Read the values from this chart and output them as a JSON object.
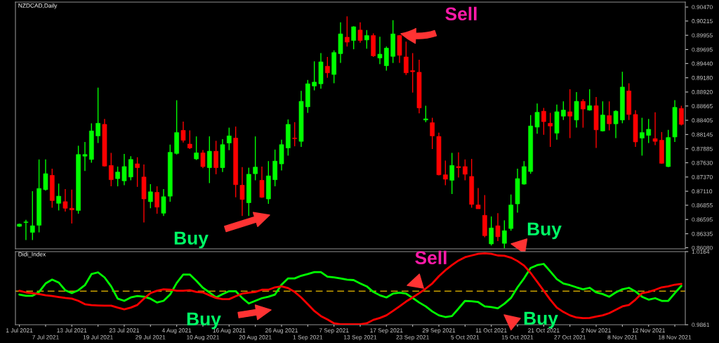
{
  "chart_data": [
    {
      "type": "candlestick",
      "title": "NZDCAD,Daily",
      "ohlc": [
        [
          0.8647,
          0.8652,
          0.8646,
          0.8651
        ],
        [
          0.8654,
          0.8659,
          0.8622,
          0.8655
        ],
        [
          0.8636,
          0.8711,
          0.8622,
          0.8648
        ],
        [
          0.8649,
          0.8769,
          0.8636,
          0.8716
        ],
        [
          0.8714,
          0.8769,
          0.8712,
          0.8743
        ],
        [
          0.874,
          0.8752,
          0.8681,
          0.8694
        ],
        [
          0.8689,
          0.8725,
          0.8676,
          0.8702
        ],
        [
          0.8692,
          0.8715,
          0.8674,
          0.868
        ],
        [
          0.868,
          0.8714,
          0.8652,
          0.8677
        ],
        [
          0.8676,
          0.8794,
          0.867,
          0.8778
        ],
        [
          0.8775,
          0.8801,
          0.8748,
          0.8778
        ],
        [
          0.8769,
          0.8835,
          0.8763,
          0.8821
        ],
        [
          0.8812,
          0.89,
          0.8799,
          0.8835
        ],
        [
          0.8833,
          0.8843,
          0.8756,
          0.8757
        ],
        [
          0.8758,
          0.8781,
          0.872,
          0.8732
        ],
        [
          0.8734,
          0.8756,
          0.872,
          0.8746
        ],
        [
          0.873,
          0.8779,
          0.8722,
          0.8756
        ],
        [
          0.8737,
          0.8775,
          0.8731,
          0.8769
        ],
        [
          0.8761,
          0.8773,
          0.8719,
          0.8754
        ],
        [
          0.8737,
          0.876,
          0.8654,
          0.8697
        ],
        [
          0.8692,
          0.8724,
          0.868,
          0.871
        ],
        [
          0.8709,
          0.872,
          0.867,
          0.8682
        ],
        [
          0.8671,
          0.8715,
          0.8666,
          0.8701
        ],
        [
          0.8702,
          0.8796,
          0.8692,
          0.8782
        ],
        [
          0.878,
          0.8877,
          0.8778,
          0.8818
        ],
        [
          0.8822,
          0.8838,
          0.88,
          0.8804
        ],
        [
          0.8797,
          0.8822,
          0.8788,
          0.879
        ],
        [
          0.877,
          0.8811,
          0.8768,
          0.8781
        ],
        [
          0.8781,
          0.8786,
          0.8753,
          0.8756
        ],
        [
          0.8754,
          0.8811,
          0.8726,
          0.8784
        ],
        [
          0.8784,
          0.8803,
          0.8742,
          0.8754
        ],
        [
          0.8754,
          0.8806,
          0.8746,
          0.8796
        ],
        [
          0.8799,
          0.8827,
          0.8786,
          0.8812
        ],
        [
          0.8808,
          0.8829,
          0.87,
          0.8723
        ],
        [
          0.8722,
          0.8755,
          0.8666,
          0.8696
        ],
        [
          0.869,
          0.8754,
          0.8666,
          0.8742
        ],
        [
          0.8743,
          0.8811,
          0.8731,
          0.8755
        ],
        [
          0.8731,
          0.8756,
          0.8699,
          0.87
        ],
        [
          0.8697,
          0.8766,
          0.8688,
          0.8739
        ],
        [
          0.8732,
          0.8787,
          0.872,
          0.8766
        ],
        [
          0.8761,
          0.8805,
          0.8749,
          0.8796
        ],
        [
          0.879,
          0.8842,
          0.8776,
          0.8833
        ],
        [
          0.8808,
          0.8837,
          0.8793,
          0.8807
        ],
        [
          0.8802,
          0.8894,
          0.8792,
          0.8875
        ],
        [
          0.8865,
          0.8914,
          0.8854,
          0.8907
        ],
        [
          0.8903,
          0.8948,
          0.8895,
          0.891
        ],
        [
          0.8907,
          0.8963,
          0.8898,
          0.8947
        ],
        [
          0.8939,
          0.8956,
          0.8918,
          0.8927
        ],
        [
          0.8924,
          0.8968,
          0.8908,
          0.8964
        ],
        [
          0.8962,
          0.9019,
          0.8945,
          0.8998
        ],
        [
          0.8992,
          0.903,
          0.8975,
          0.8983
        ],
        [
          0.8986,
          0.9012,
          0.897,
          0.9011
        ],
        [
          0.9005,
          0.9019,
          0.8982,
          0.8986
        ],
        [
          0.8987,
          0.9005,
          0.8971,
          0.8995
        ],
        [
          0.8995,
          0.8999,
          0.8956,
          0.8958
        ],
        [
          0.8954,
          0.8993,
          0.8943,
          0.8961
        ],
        [
          0.894,
          0.8975,
          0.8931,
          0.8972
        ],
        [
          0.8957,
          0.9023,
          0.8945,
          0.8998
        ],
        [
          0.8995,
          0.8996,
          0.8945,
          0.8959
        ],
        [
          0.8956,
          0.8984,
          0.8923,
          0.8927
        ],
        [
          0.8931,
          0.8963,
          0.8891,
          0.8929
        ],
        [
          0.8928,
          0.8951,
          0.8853,
          0.8863
        ],
        [
          0.8841,
          0.8867,
          0.8837,
          0.8843
        ],
        [
          0.8836,
          0.8845,
          0.8788,
          0.8812
        ],
        [
          0.8811,
          0.8818,
          0.874,
          0.8741
        ],
        [
          0.8741,
          0.8767,
          0.8722,
          0.8733
        ],
        [
          0.8731,
          0.8781,
          0.8706,
          0.8758
        ],
        [
          0.8756,
          0.8782,
          0.8736,
          0.8754
        ],
        [
          0.8756,
          0.8769,
          0.8731,
          0.8742
        ],
        [
          0.8738,
          0.877,
          0.8681,
          0.8687
        ],
        [
          0.8686,
          0.8717,
          0.8679,
          0.8679
        ],
        [
          0.8667,
          0.8704,
          0.8627,
          0.863
        ],
        [
          0.8615,
          0.8665,
          0.8612,
          0.8644
        ],
        [
          0.8648,
          0.8671,
          0.862,
          0.8628
        ],
        [
          0.8616,
          0.8658,
          0.8607,
          0.8639
        ],
        [
          0.8643,
          0.8705,
          0.8639,
          0.8686
        ],
        [
          0.8688,
          0.8752,
          0.8672,
          0.8734
        ],
        [
          0.8724,
          0.8766,
          0.8723,
          0.8756
        ],
        [
          0.8747,
          0.885,
          0.8743,
          0.883
        ],
        [
          0.8828,
          0.8871,
          0.8816,
          0.8855
        ],
        [
          0.8857,
          0.8863,
          0.8814,
          0.8838
        ],
        [
          0.8835,
          0.8854,
          0.8792,
          0.883
        ],
        [
          0.8817,
          0.8869,
          0.8805,
          0.8856
        ],
        [
          0.8848,
          0.8875,
          0.8841,
          0.8859
        ],
        [
          0.8856,
          0.8897,
          0.8808,
          0.8848
        ],
        [
          0.8841,
          0.8892,
          0.8827,
          0.8875
        ],
        [
          0.8875,
          0.8879,
          0.8827,
          0.8861
        ],
        [
          0.8859,
          0.8897,
          0.8858,
          0.8867
        ],
        [
          0.8867,
          0.8883,
          0.879,
          0.8823
        ],
        [
          0.8821,
          0.8875,
          0.882,
          0.885
        ],
        [
          0.8849,
          0.8875,
          0.8822,
          0.8834
        ],
        [
          0.8834,
          0.8859,
          0.8808,
          0.8857
        ],
        [
          0.8841,
          0.8929,
          0.8835,
          0.8901
        ],
        [
          0.8894,
          0.8908,
          0.8841,
          0.8851
        ],
        [
          0.8851,
          0.8859,
          0.8792,
          0.8801
        ],
        [
          0.8808,
          0.8845,
          0.8776,
          0.8818
        ],
        [
          0.8813,
          0.8843,
          0.8799,
          0.8824
        ],
        [
          0.8807,
          0.8855,
          0.8795,
          0.8802
        ],
        [
          0.8804,
          0.8819,
          0.8761,
          0.8762
        ],
        [
          0.8756,
          0.8823,
          0.8755,
          0.8809
        ],
        [
          0.881,
          0.8877,
          0.8801,
          0.8864
        ],
        [
          0.8862,
          0.8867,
          0.8831,
          0.8833
        ]
      ],
      "colors": [
        "#00ff00",
        "#00ff00",
        "#00ff00",
        "#00ff00",
        "#00ff00",
        "#ff0000",
        "#00ff00",
        "#ff0000",
        "#ff0000",
        "#00ff00",
        "#00ff00",
        "#00ff00",
        "#00ff00",
        "#ff0000",
        "#ff0000",
        "#00ff00",
        "#00ff00",
        "#00ff00",
        "#ff0000",
        "#ff0000",
        "#00ff00",
        "#ff0000",
        "#00ff00",
        "#00ff00",
        "#00ff00",
        "#ff0000",
        "#ff0000",
        "#00ff00",
        "#ff0000",
        "#00ff00",
        "#ff0000",
        "#00ff00",
        "#00ff00",
        "#ff0000",
        "#ff0000",
        "#00ff00",
        "#00ff00",
        "#ff0000",
        "#00ff00",
        "#00ff00",
        "#00ff00",
        "#00ff00",
        "#ff0000",
        "#00ff00",
        "#00ff00",
        "#00ff00",
        "#00ff00",
        "#ff0000",
        "#00ff00",
        "#00ff00",
        "#ff0000",
        "#00ff00",
        "#ff0000",
        "#00ff00",
        "#ff0000",
        "#00ff00",
        "#00ff00",
        "#00ff00",
        "#ff0000",
        "#ff0000",
        "#ff0000",
        "#ff0000",
        "#00ff00",
        "#ff0000",
        "#ff0000",
        "#ff0000",
        "#00ff00",
        "#ff0000",
        "#ff0000",
        "#ff0000",
        "#ff0000",
        "#ff0000",
        "#00ff00",
        "#ff0000",
        "#00ff00",
        "#00ff00",
        "#00ff00",
        "#00ff00",
        "#00ff00",
        "#00ff00",
        "#ff0000",
        "#ff0000",
        "#00ff00",
        "#00ff00",
        "#ff0000",
        "#00ff00",
        "#ff0000",
        "#00ff00",
        "#ff0000",
        "#00ff00",
        "#ff0000",
        "#00ff00",
        "#00ff00",
        "#ff0000",
        "#ff0000",
        "#00ff00",
        "#00ff00",
        "#ff0000",
        "#ff0000",
        "#00ff00",
        "#00ff00",
        "#ff0000"
      ],
      "ylim": [
        0.8606,
        0.9056
      ],
      "yticks": [
        {
          "value": 0.9047,
          "label": "0.90470"
        },
        {
          "value": 0.90215,
          "label": "0.90215"
        },
        {
          "value": 0.89955,
          "label": "0.89955"
        },
        {
          "value": 0.89695,
          "label": "0.89695"
        },
        {
          "value": 0.8944,
          "label": "0.89440"
        },
        {
          "value": 0.8918,
          "label": "0.89180"
        },
        {
          "value": 0.8892,
          "label": "0.88920"
        },
        {
          "value": 0.88665,
          "label": "0.88665"
        },
        {
          "value": 0.88405,
          "label": "0.88405"
        },
        {
          "value": 0.88145,
          "label": "0.88145"
        },
        {
          "value": 0.87885,
          "label": "0.87885"
        },
        {
          "value": 0.8763,
          "label": "0.87630"
        },
        {
          "value": 0.8737,
          "label": "0.87370"
        },
        {
          "value": 0.8711,
          "label": "0.87110"
        },
        {
          "value": 0.86855,
          "label": "0.86855"
        },
        {
          "value": 0.86595,
          "label": "0.86595"
        },
        {
          "value": 0.86335,
          "label": "0.86335"
        },
        {
          "value": 0.8608,
          "label": "0.86080"
        }
      ],
      "tick_labels": "y",
      "annotations": [
        "Sell",
        "Buy",
        "Buy"
      ]
    },
    {
      "type": "line",
      "title": "Didi_Index",
      "categories": [
        "1 Jul 2021",
        null,
        null,
        null,
        "7 Jul 2021",
        null,
        null,
        null,
        "13 Jul 2021",
        null,
        null,
        null,
        "19 Jul 2021",
        null,
        null,
        null,
        "23 Jul 2021",
        null,
        null,
        null,
        "29 Jul 2021",
        null,
        null,
        null,
        "4 Aug 2021",
        null,
        null,
        null,
        "10 Aug 2021",
        null,
        null,
        null,
        "16 Aug 2021",
        null,
        null,
        null,
        "20 Aug 2021",
        null,
        null,
        null,
        "26 Aug 2021",
        null,
        null,
        null,
        "1 Sep 2021",
        null,
        null,
        null,
        "7 Sep 2021",
        null,
        null,
        null,
        "13 Sep 2021",
        null,
        null,
        null,
        "17 Sep 2021",
        null,
        null,
        null,
        "23 Sep 2021",
        null,
        null,
        null,
        "29 Sep 2021",
        null,
        null,
        null,
        "5 Oct 2021",
        null,
        null,
        null,
        "11 Oct 2021",
        null,
        null,
        null,
        "15 Oct 2021",
        null,
        null,
        null,
        "21 Oct 2021",
        null,
        null,
        null,
        "27 Oct 2021",
        null,
        null,
        null,
        "2 Nov 2021",
        null,
        null,
        null,
        "8 Nov 2021",
        null,
        null,
        null,
        "12 Nov 2021",
        null,
        null,
        null,
        "18 Nov 2021",
        null
      ],
      "series": [
        {
          "color": "#00ff00",
          "values": [
            0.9986,
            0.9981,
            0.9981,
            0.9997,
            1.0032,
            1.0048,
            1.0036,
            1.0004,
            0.9992,
            1.0004,
            1.0025,
            1.0071,
            1.0078,
            1.0057,
            1.002,
            0.9969,
            0.996,
            0.9974,
            0.998,
            0.9977,
            0.9969,
            0.9953,
            0.996,
            0.9986,
            1.0034,
            1.0069,
            1.0069,
            1.0043,
            1.0014,
            0.9995,
            0.9974,
            0.9988,
            1.0,
            1.0,
            0.9972,
            0.9949,
            0.996,
            0.9971,
            0.9977,
            0.9986,
            1.0027,
            1.0053,
            1.0053,
            1.0064,
            1.0071,
            1.0079,
            1.0079,
            1.006,
            1.0057,
            1.0053,
            1.0048,
            1.0046,
            1.0032,
            1.002,
            0.9997,
            0.9983,
            0.9974,
            0.999,
            0.9994,
            0.999,
            0.9972,
            0.9953,
            0.9937,
            0.9916,
            0.99,
            0.9893,
            0.9897,
            0.9928,
            0.996,
            0.9958,
            0.9955,
            0.9937,
            0.9934,
            0.9929,
            0.9948,
            0.9972,
            1.0016,
            1.0053,
            1.0096,
            1.0108,
            1.0113,
            1.0082,
            1.005,
            1.0032,
            1.0025,
            1.0016,
            1.0008,
            1.0014,
            0.9995,
            0.9988,
            0.9977,
            0.9995,
            1.0008,
            1.0014,
            0.9999,
            0.9977,
            0.9965,
            0.9971,
            0.996,
            0.996,
            0.9992,
            1.0022
          ]
        },
        {
          "color": "#ff0000",
          "values": [
            1.0002,
            0.9995,
            0.9992,
            0.9988,
            0.9983,
            0.998,
            0.9976,
            0.9972,
            0.9969,
            0.996,
            0.9946,
            0.9942,
            0.9941,
            0.994,
            0.994,
            0.9932,
            0.9925,
            0.9932,
            0.9943,
            0.9969,
            0.9992,
            1.0002,
            1.0008,
            1.0006,
            1.0002,
            1.0002,
            1.0004,
            0.9997,
            0.9995,
            0.9983,
            0.9972,
            0.9967,
            0.9967,
            0.9979,
            0.999,
            0.9994,
            0.9997,
            1.0006,
            1.0006,
            1.0016,
            1.002,
            1.0013,
            0.9997,
            0.9974,
            0.9946,
            0.9918,
            0.9897,
            0.9883,
            0.9867,
            0.9863,
            0.9863,
            0.9863,
            0.9863,
            0.9867,
            0.9881,
            0.9889,
            0.99,
            0.9918,
            0.9937,
            0.9957,
            0.9974,
            0.9992,
            1.0011,
            1.0032,
            1.0062,
            1.0087,
            1.0108,
            1.0127,
            1.0141,
            1.0148,
            1.0155,
            1.0157,
            1.0155,
            1.0148,
            1.0147,
            1.0139,
            1.0125,
            1.0106,
            1.0076,
            1.0039,
            1.0002,
            0.9965,
            0.9932,
            0.9914,
            0.99,
            0.9891,
            0.9888,
            0.9889,
            0.9895,
            0.99,
            0.9909,
            0.9923,
            0.9937,
            0.9943,
            0.9965,
            0.9992,
            0.9997,
            1.0006,
            1.0016,
            1.002,
            1.0027,
            1.003
          ]
        }
      ],
      "ref_lines": [
        {
          "axis": "y",
          "value": 1.0,
          "color": "#c8a000",
          "line_style": "dashed"
        }
      ],
      "ylim": [
        0.9861,
        1.0164
      ],
      "yticks": [
        0.9861,
        1.0164
      ],
      "annotations": [
        "Sell",
        "Buy",
        "Buy"
      ]
    }
  ]
}
